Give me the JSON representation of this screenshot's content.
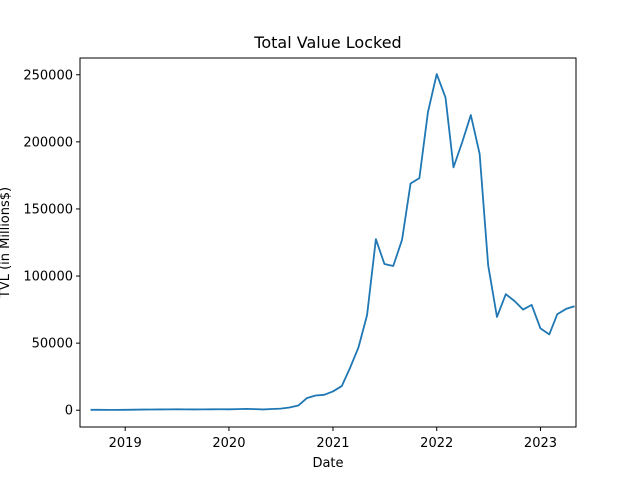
{
  "chart_data": {
    "type": "line",
    "title": "Total Value Locked",
    "xlabel": "Date",
    "ylabel": "TVL (in Millions$)",
    "xlim": [
      "2018-07-26",
      "2023-05-06"
    ],
    "ylim": [
      -12500,
      262500
    ],
    "x_ticks": [
      {
        "label": "2019",
        "date": "2019-01-01"
      },
      {
        "label": "2020",
        "date": "2020-01-01"
      },
      {
        "label": "2021",
        "date": "2021-01-01"
      },
      {
        "label": "2022",
        "date": "2022-01-01"
      },
      {
        "label": "2023",
        "date": "2023-01-01"
      }
    ],
    "y_ticks": [
      0,
      50000,
      100000,
      150000,
      200000,
      250000
    ],
    "grid": false,
    "series": [
      {
        "color": "#1f77b4",
        "points": [
          [
            "2018-09-01",
            300
          ],
          [
            "2018-10-01",
            300
          ],
          [
            "2018-11-01",
            280
          ],
          [
            "2018-12-01",
            250
          ],
          [
            "2019-01-01",
            300
          ],
          [
            "2019-02-01",
            400
          ],
          [
            "2019-03-01",
            500
          ],
          [
            "2019-04-01",
            550
          ],
          [
            "2019-05-01",
            600
          ],
          [
            "2019-06-01",
            650
          ],
          [
            "2019-07-01",
            700
          ],
          [
            "2019-08-01",
            650
          ],
          [
            "2019-09-01",
            600
          ],
          [
            "2019-10-01",
            650
          ],
          [
            "2019-11-01",
            700
          ],
          [
            "2019-12-01",
            750
          ],
          [
            "2020-01-01",
            700
          ],
          [
            "2020-02-01",
            800
          ],
          [
            "2020-03-01",
            1000
          ],
          [
            "2020-04-01",
            800
          ],
          [
            "2020-05-01",
            600
          ],
          [
            "2020-06-01",
            900
          ],
          [
            "2020-07-01",
            1200
          ],
          [
            "2020-08-01",
            2000
          ],
          [
            "2020-09-01",
            3500
          ],
          [
            "2020-10-01",
            9000
          ],
          [
            "2020-11-01",
            11000
          ],
          [
            "2020-12-01",
            11500
          ],
          [
            "2021-01-01",
            14000
          ],
          [
            "2021-02-01",
            18000
          ],
          [
            "2021-03-01",
            31000
          ],
          [
            "2021-04-01",
            47000
          ],
          [
            "2021-05-01",
            71000
          ],
          [
            "2021-06-01",
            127500
          ],
          [
            "2021-07-01",
            109000
          ],
          [
            "2021-08-01",
            107500
          ],
          [
            "2021-09-01",
            127000
          ],
          [
            "2021-10-01",
            169000
          ],
          [
            "2021-11-01",
            173000
          ],
          [
            "2021-12-01",
            222000
          ],
          [
            "2022-01-01",
            250500
          ],
          [
            "2022-02-01",
            233000
          ],
          [
            "2022-03-01",
            181000
          ],
          [
            "2022-04-01",
            200000
          ],
          [
            "2022-05-01",
            220000
          ],
          [
            "2022-06-01",
            191000
          ],
          [
            "2022-07-01",
            108000
          ],
          [
            "2022-08-01",
            69500
          ],
          [
            "2022-09-01",
            86500
          ],
          [
            "2022-10-01",
            81500
          ],
          [
            "2022-11-01",
            75000
          ],
          [
            "2022-12-01",
            78500
          ],
          [
            "2023-01-01",
            61000
          ],
          [
            "2023-02-01",
            56500
          ],
          [
            "2023-03-01",
            71500
          ],
          [
            "2023-04-01",
            75500
          ],
          [
            "2023-05-01",
            77500
          ]
        ]
      }
    ]
  }
}
